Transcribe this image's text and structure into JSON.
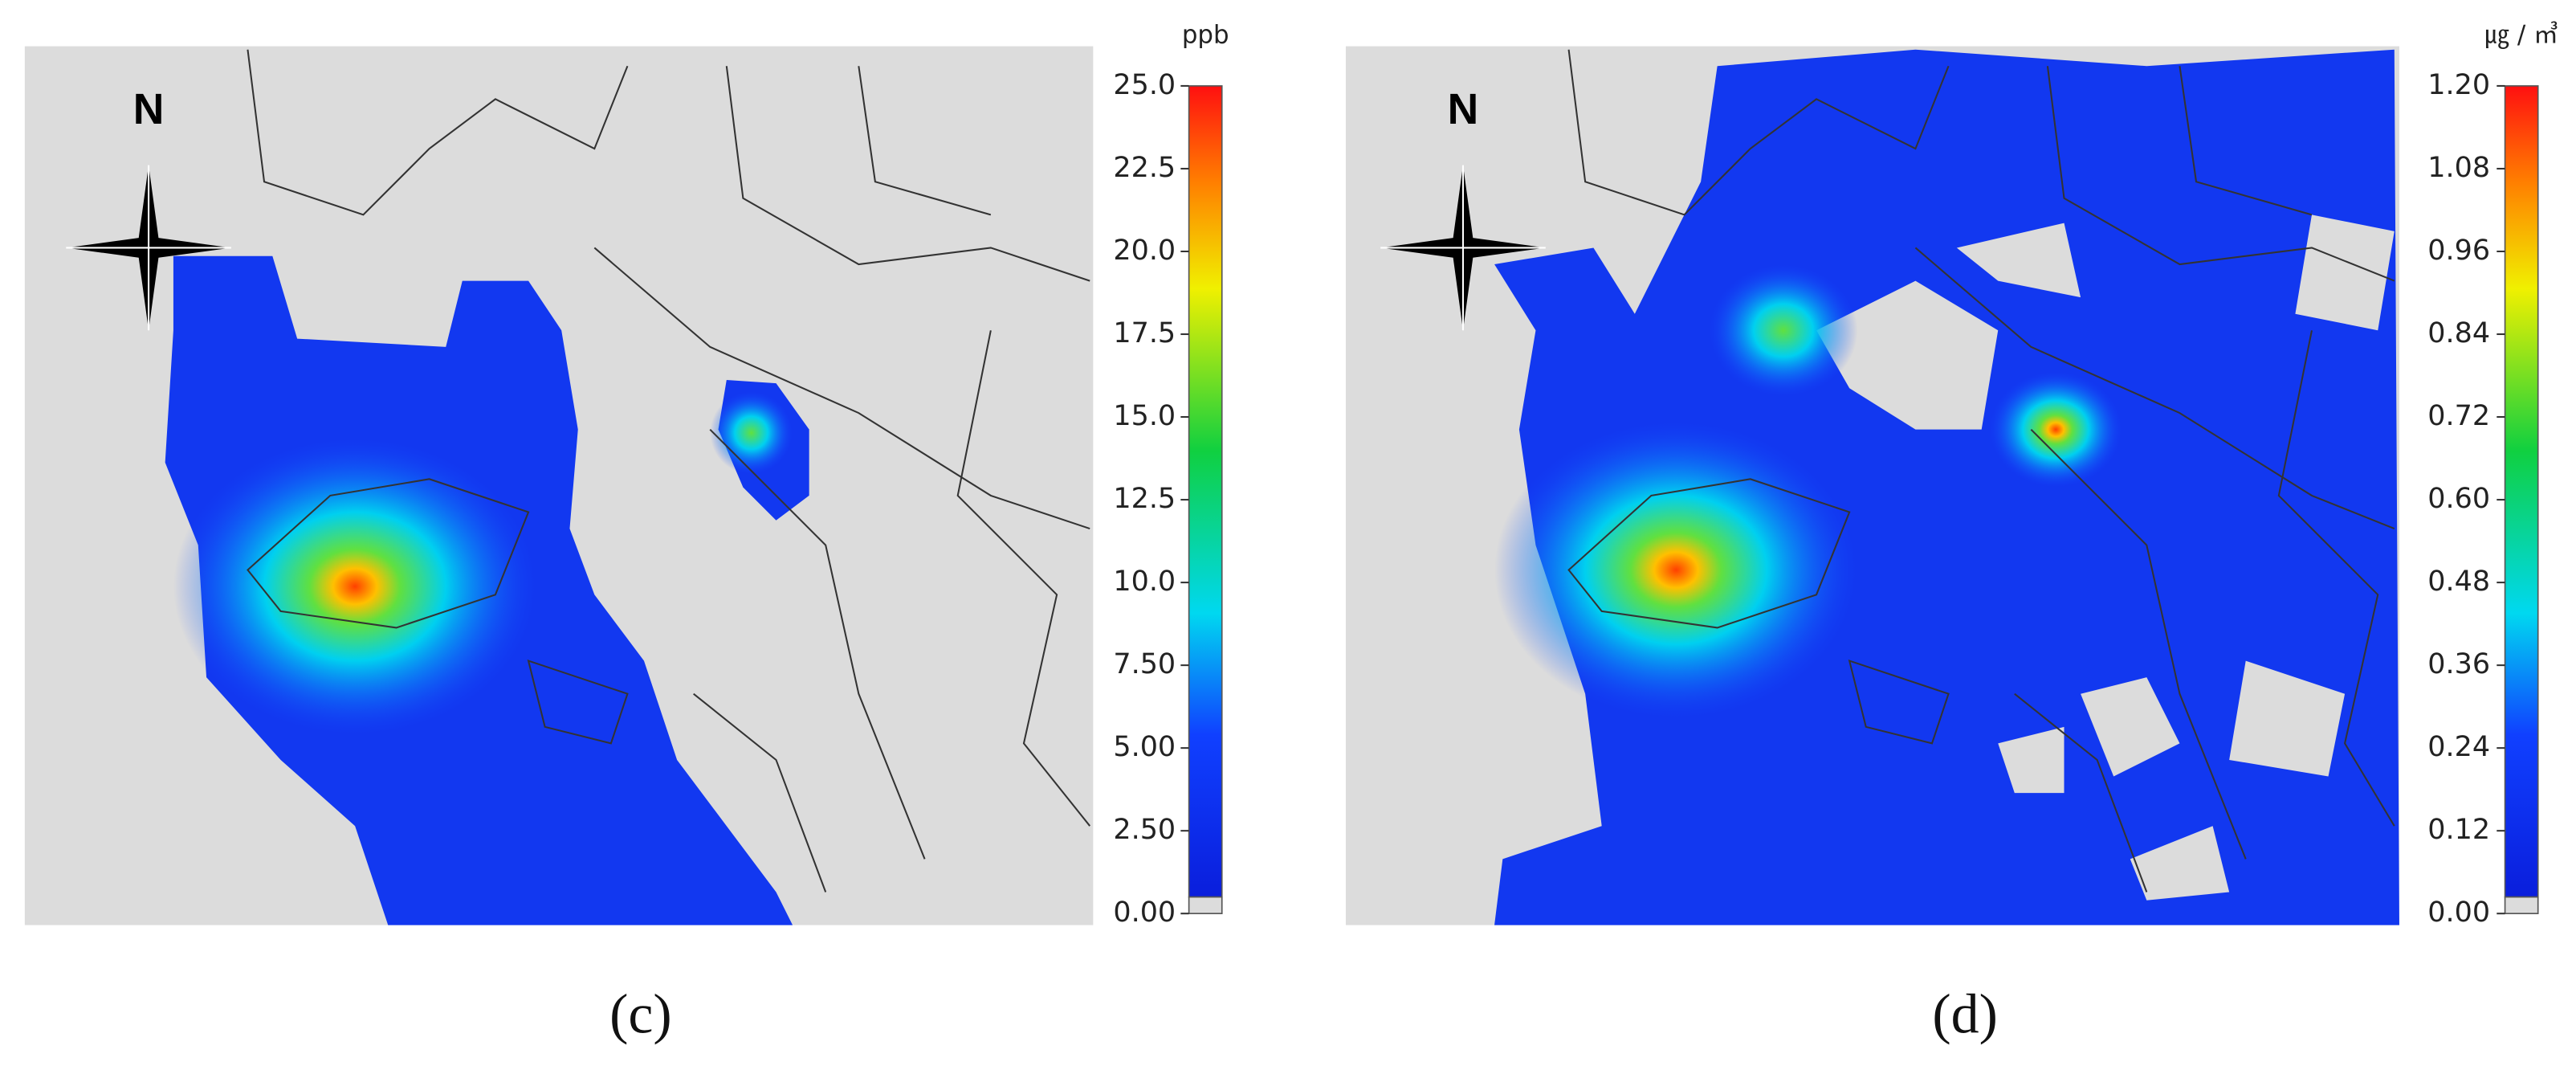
{
  "panels": [
    {
      "label": "(c)",
      "north": "N",
      "colorbar": {
        "unit": "ppb",
        "lim": [
          0,
          25
        ],
        "ticks": [
          {
            "value": 0,
            "label": "0.00"
          },
          {
            "value": 2.5,
            "label": "2.50"
          },
          {
            "value": 5,
            "label": "5.00"
          },
          {
            "value": 7.5,
            "label": "7.50"
          },
          {
            "value": 10,
            "label": "10.0"
          },
          {
            "value": 12.5,
            "label": "12.5"
          },
          {
            "value": 15,
            "label": "15.0"
          },
          {
            "value": 17.5,
            "label": "17.5"
          },
          {
            "value": 20,
            "label": "20.0"
          },
          {
            "value": 22.5,
            "label": "22.5"
          },
          {
            "value": 25,
            "label": "25.0"
          }
        ]
      }
    },
    {
      "label": "(d)",
      "north": "N",
      "colorbar": {
        "unit": "㎍ / ㎥",
        "lim": [
          0,
          1.2
        ],
        "ticks": [
          {
            "value": 0,
            "label": "0.00"
          },
          {
            "value": 0.12,
            "label": "0.12"
          },
          {
            "value": 0.24,
            "label": "0.24"
          },
          {
            "value": 0.36,
            "label": "0.36"
          },
          {
            "value": 0.48,
            "label": "0.48"
          },
          {
            "value": 0.6,
            "label": "0.60"
          },
          {
            "value": 0.72,
            "label": "0.72"
          },
          {
            "value": 0.84,
            "label": "0.84"
          },
          {
            "value": 0.96,
            "label": "0.96"
          },
          {
            "value": 1.08,
            "label": "1.08"
          },
          {
            "value": 1.2,
            "label": "1.20"
          }
        ]
      }
    }
  ]
}
